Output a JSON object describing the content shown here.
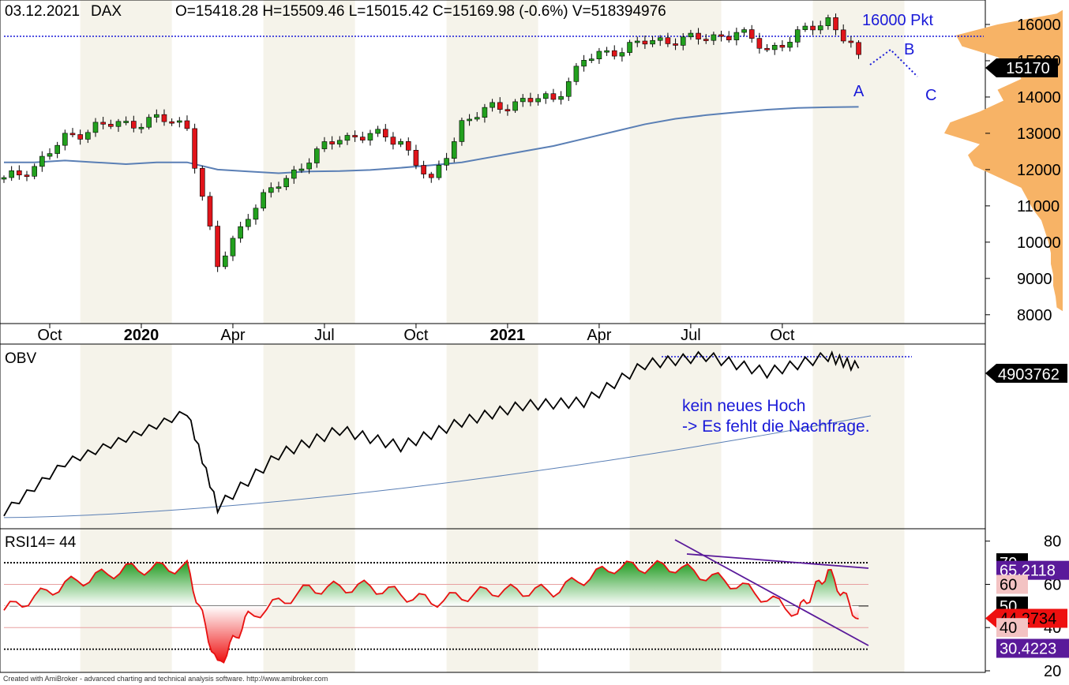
{
  "header": {
    "date": "03.12.2021",
    "symbol": "DAX",
    "ohlc": "O=15418.28  H=15509.46  L=15015.42  C=15169.98 (-0.6%)  V=518394976"
  },
  "price_panel": {
    "target_label": "16000 Pkt",
    "last_price_label": "15170",
    "wave_labels": [
      "A",
      "B",
      "C"
    ],
    "y_ticks": [
      {
        "value": 16000,
        "label": "16000"
      },
      {
        "value": 15000,
        "label": "15000"
      },
      {
        "value": 14000,
        "label": "14000"
      },
      {
        "value": 13000,
        "label": "13000"
      },
      {
        "value": 12000,
        "label": "12000"
      },
      {
        "value": 11000,
        "label": "11000"
      },
      {
        "value": 10000,
        "label": "10000"
      },
      {
        "value": 9000,
        "label": "9000"
      },
      {
        "value": 8000,
        "label": "8000"
      }
    ],
    "x_ticks": [
      {
        "label": "Oct",
        "bold": false
      },
      {
        "label": "2020",
        "bold": true
      },
      {
        "label": "Apr",
        "bold": false
      },
      {
        "label": "Jul",
        "bold": false
      },
      {
        "label": "Oct",
        "bold": false
      },
      {
        "label": "2021",
        "bold": true
      },
      {
        "label": "Apr",
        "bold": false
      },
      {
        "label": "Jul",
        "bold": false
      },
      {
        "label": "Oct",
        "bold": false
      }
    ]
  },
  "obv_panel": {
    "title": "OBV",
    "last_value_label": "4903762",
    "annotation_line1": "kein neues Hoch",
    "annotation_line2": "-> Es fehlt die Nachfrage."
  },
  "rsi_panel": {
    "title": "RSI14= 44",
    "y_ticks": [
      {
        "value": 80,
        "label": "80"
      },
      {
        "value": 60,
        "label": "60"
      },
      {
        "value": 40,
        "label": "40"
      },
      {
        "value": 20,
        "label": "20"
      }
    ],
    "level_labels": [
      {
        "value": 70,
        "label": "70",
        "style": "black"
      },
      {
        "value": 66.5,
        "label": "65.2118",
        "style": "purple"
      },
      {
        "value": 60,
        "label": "60",
        "style": "pink"
      },
      {
        "value": 50,
        "label": "50",
        "style": "black"
      },
      {
        "value": 44.27,
        "label": "44.2734",
        "style": "red"
      },
      {
        "value": 40,
        "label": "40",
        "style": "pink"
      },
      {
        "value": 30.4,
        "label": "30.4223",
        "style": "purple"
      }
    ]
  },
  "footer": "Created with AmiBroker - advanced charting and technical analysis software. http://www.amibroker.com",
  "colors": {
    "up": "#22a01e",
    "down": "#e0141a",
    "ma": "#5a7fb5",
    "annotation": "#1a1ad8",
    "volume_profile": "#f7b366",
    "rsi_line": "#e81010",
    "trendline": "#5a1a9a"
  },
  "chart_data": [
    {
      "type": "candlestick",
      "title": "DAX",
      "x": [
        "2019-08",
        "2019-09",
        "2019-10",
        "2019-11",
        "2019-12",
        "2020-01",
        "2020-02",
        "2020-03",
        "2020-04",
        "2020-05",
        "2020-06",
        "2020-07",
        "2020-08",
        "2020-09",
        "2020-10",
        "2020-11",
        "2020-12",
        "2021-01",
        "2021-02",
        "2021-03",
        "2021-04",
        "2021-05",
        "2021-06",
        "2021-07",
        "2021-08",
        "2021-09",
        "2021-10",
        "2021-11",
        "2021-12"
      ],
      "close_approx": [
        11700,
        12100,
        12850,
        13200,
        13250,
        13400,
        13200,
        9300,
        10800,
        11600,
        12300,
        12900,
        12950,
        12800,
        11600,
        13300,
        13700,
        13900,
        13950,
        15000,
        15300,
        15500,
        15600,
        15600,
        15800,
        15300,
        15700,
        16150,
        15170
      ],
      "ma_approx": [
        12200,
        12200,
        12250,
        12200,
        12150,
        12200,
        12200,
        12000,
        11950,
        11900,
        11950,
        11960,
        11990,
        12050,
        12120,
        12200,
        12350,
        12500,
        12650,
        12850,
        13050,
        13250,
        13400,
        13500,
        13580,
        13650,
        13700,
        13720,
        13730
      ],
      "ylim": [
        7800,
        16500
      ],
      "y_axis_side": "right",
      "reference_line": 16000
    },
    {
      "type": "line",
      "title": "OBV",
      "x": [
        "2019-08",
        "2019-10",
        "2019-12",
        "2020-02",
        "2020-03",
        "2020-05",
        "2020-07",
        "2020-09",
        "2020-11",
        "2021-01",
        "2021-03",
        "2021-05",
        "2021-07",
        "2021-09",
        "2021-11",
        "2021-12"
      ],
      "values_relative": [
        0.05,
        0.35,
        0.5,
        0.66,
        0.08,
        0.4,
        0.55,
        0.45,
        0.6,
        0.7,
        0.72,
        0.95,
        1.0,
        0.9,
        1.0,
        0.93
      ],
      "reference_line": "previous high"
    },
    {
      "type": "area",
      "title": "RSI14",
      "x": [
        "2019-08",
        "2019-10",
        "2019-12",
        "2020-02",
        "2020-03",
        "2020-04",
        "2020-06",
        "2020-08",
        "2020-10",
        "2020-12",
        "2021-02",
        "2021-04",
        "2021-06",
        "2021-08",
        "2021-10",
        "2021-11",
        "2021-12"
      ],
      "values": [
        48,
        60,
        67,
        68,
        22,
        45,
        58,
        59,
        52,
        57,
        57,
        68,
        68,
        60,
        47,
        66,
        44
      ],
      "ylim": [
        20,
        85
      ],
      "levels": [
        70,
        60,
        50,
        40,
        30
      ]
    }
  ]
}
